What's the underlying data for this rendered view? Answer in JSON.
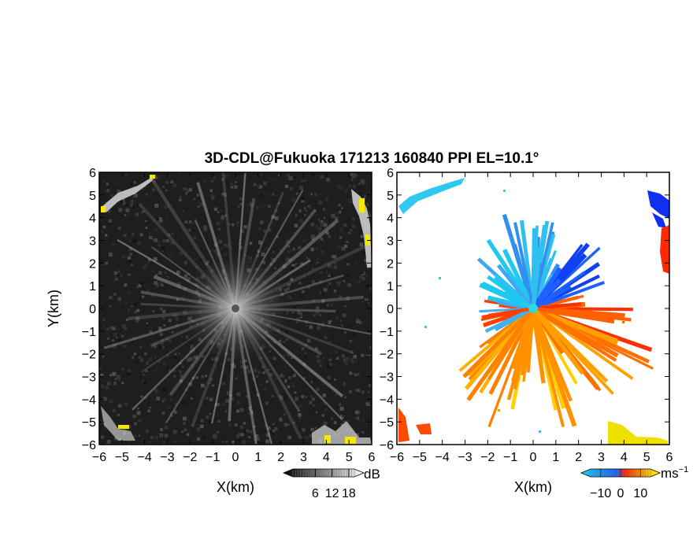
{
  "title": "3D-CDL@Fukuoka 171213 160840 PPI EL=10.1°",
  "chart_data": [
    {
      "type": "heatmap",
      "panel": "reflectivity",
      "xlabel": "X(km)",
      "ylabel": "Y(km)",
      "xlim": [
        -6,
        6
      ],
      "ylim": [
        -6,
        6
      ],
      "x_ticks": [
        -6,
        -5,
        -4,
        -3,
        -2,
        -1,
        0,
        1,
        2,
        3,
        4,
        5,
        6
      ],
      "y_ticks": [
        -6,
        -5,
        -4,
        -3,
        -2,
        -1,
        0,
        1,
        2,
        3,
        4,
        5,
        6
      ],
      "x_tick_labels": [
        "−6",
        "−5",
        "−4",
        "−3",
        "−2",
        "−1",
        "0",
        "1",
        "2",
        "3",
        "4",
        "5",
        "6"
      ],
      "y_tick_labels": [
        "−6",
        "−5",
        "−4",
        "−3",
        "−2",
        "−1",
        "0",
        "1",
        "2",
        "3",
        "4",
        "5",
        "6"
      ],
      "colorbar": {
        "unit": "dB",
        "tick_values": [
          6,
          12,
          18
        ],
        "tick_labels": [
          "6",
          "12",
          "18"
        ],
        "colors": [
          "#000000",
          "#ffffff"
        ]
      }
    },
    {
      "type": "heatmap",
      "panel": "doppler-velocity",
      "xlabel": "X(km)",
      "ylabel": "",
      "xlim": [
        -6,
        6
      ],
      "ylim": [
        -6,
        6
      ],
      "x_ticks": [
        -6,
        -5,
        -4,
        -3,
        -2,
        -1,
        0,
        1,
        2,
        3,
        4,
        5,
        6
      ],
      "y_ticks": [
        -6,
        -5,
        -4,
        -3,
        -2,
        -1,
        0,
        1,
        2,
        3,
        4,
        5,
        6
      ],
      "x_tick_labels": [
        "−6",
        "−5",
        "−4",
        "−3",
        "−2",
        "−1",
        "0",
        "1",
        "2",
        "3",
        "4",
        "5",
        "6"
      ],
      "y_tick_labels": [
        "−6",
        "−5",
        "−4",
        "−3",
        "−2",
        "−1",
        "0",
        "1",
        "2",
        "3",
        "4",
        "5",
        "6"
      ],
      "colorbar": {
        "unit": "ms",
        "unit_sup": "−1",
        "tick_values": [
          -10,
          0,
          10
        ],
        "tick_labels": [
          "−10",
          "0",
          "10"
        ],
        "colors": [
          "#20d0f0",
          "#1060ff",
          "#ff2000",
          "#ffa000",
          "#ffff00"
        ]
      }
    }
  ]
}
